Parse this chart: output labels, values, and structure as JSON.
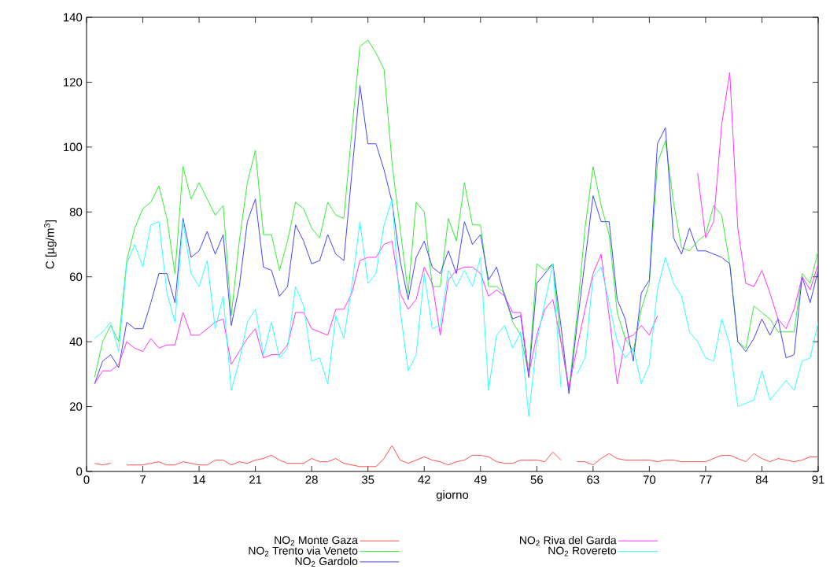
{
  "chart_data": {
    "type": "line",
    "xlabel": "giorno",
    "ylabel": "C [µg/m$^{3}$]",
    "x": [
      1,
      2,
      3,
      4,
      5,
      6,
      7,
      8,
      9,
      10,
      11,
      12,
      13,
      14,
      15,
      16,
      17,
      18,
      19,
      20,
      21,
      22,
      23,
      24,
      25,
      26,
      27,
      28,
      29,
      30,
      31,
      32,
      33,
      34,
      35,
      36,
      37,
      38,
      39,
      40,
      41,
      42,
      43,
      44,
      45,
      46,
      47,
      48,
      49,
      50,
      51,
      52,
      53,
      54,
      55,
      56,
      57,
      58,
      59,
      60,
      61,
      62,
      63,
      64,
      65,
      66,
      67,
      68,
      69,
      70,
      71,
      72,
      73,
      74,
      75,
      76,
      77,
      78,
      79,
      80,
      81,
      82,
      83,
      84,
      85,
      86,
      87,
      88,
      89,
      90,
      91
    ],
    "xlim": [
      0,
      91
    ],
    "xticks": [
      0,
      7,
      14,
      21,
      28,
      35,
      42,
      49,
      56,
      63,
      70,
      77,
      84,
      91
    ],
    "ylim": [
      0,
      140
    ],
    "yticks": [
      0,
      20,
      40,
      60,
      80,
      100,
      120,
      140
    ],
    "grid": false,
    "legend": "bottom",
    "marker": "none",
    "line_style": "solid",
    "series": [
      {
        "name": "NO$_{2}$ Monte Gaza",
        "color": "#ff5050",
        "values": [
          2.5,
          2,
          2.5,
          null,
          2,
          2,
          2,
          2.5,
          3,
          2,
          2,
          3,
          2.5,
          2,
          2,
          3.5,
          3.5,
          2,
          3,
          2.5,
          3.5,
          4,
          5,
          3.5,
          2.5,
          2.5,
          2.5,
          4,
          3,
          3,
          4,
          2.5,
          2,
          1.5,
          1.5,
          1.5,
          4,
          8,
          3.5,
          2.5,
          3.5,
          4.5,
          3.5,
          3,
          2,
          3,
          3.5,
          5,
          5,
          4.5,
          3,
          2.5,
          2.5,
          3.5,
          3.5,
          3.5,
          3,
          6,
          3.5,
          null,
          3,
          3,
          2,
          4,
          5.5,
          4,
          3.5,
          3.5,
          3.5,
          3.5,
          3,
          3.5,
          3.5,
          3,
          3,
          3,
          3,
          4,
          5,
          5,
          4,
          3,
          5.5,
          4,
          3,
          4,
          3.5,
          3,
          3.5,
          4.5,
          4.5
        ]
      },
      {
        "name": "NO$_{2}$ Trento via Veneto",
        "color": "#33ee33",
        "values": [
          29,
          40,
          45,
          40,
          65,
          75,
          81,
          83,
          88,
          78,
          61,
          94,
          84,
          89,
          84,
          79,
          82,
          48,
          71,
          89,
          99,
          73,
          73,
          62,
          71,
          83,
          81,
          75,
          72,
          83,
          79,
          78,
          105,
          131,
          133,
          129,
          124,
          95,
          75,
          55,
          83,
          80,
          57,
          57,
          78,
          71,
          89,
          76,
          76,
          57,
          57,
          55,
          46,
          42,
          30,
          64,
          62,
          64,
          40,
          25,
          48,
          75,
          94,
          82,
          73,
          49,
          41,
          37,
          50,
          58,
          95,
          102,
          83,
          69,
          68,
          71,
          73,
          82,
          79,
          64,
          40,
          38,
          51,
          49,
          47,
          43,
          43,
          43,
          61,
          58,
          68
        ]
      },
      {
        "name": "NO$_{2}$ Gardolo",
        "color": "#4444ff",
        "values": [
          27,
          34,
          36,
          32,
          46,
          44,
          44,
          52,
          61,
          61,
          52,
          78,
          66,
          68,
          74,
          67,
          73,
          45,
          57,
          77,
          84,
          63,
          62,
          54,
          57,
          76,
          71,
          64,
          65,
          73,
          67,
          65,
          92,
          119,
          101,
          101,
          93,
          83,
          65,
          53,
          66,
          71,
          63,
          61,
          68,
          61,
          77,
          70,
          73,
          59,
          63,
          54,
          47,
          48,
          29,
          58,
          61,
          64,
          45,
          24,
          45,
          65,
          85,
          77,
          77,
          53,
          47,
          34,
          55,
          59,
          101,
          106,
          72,
          67,
          75,
          68,
          68,
          67,
          66,
          64,
          40,
          37,
          41,
          47,
          42,
          47,
          35,
          36,
          60,
          52,
          62
        ]
      },
      {
        "name": "NO$_{2}$ Riva del Garda",
        "color": "#ff33ff",
        "values": [
          27,
          31,
          31,
          33,
          40,
          38,
          37,
          41,
          38,
          39,
          39,
          49,
          42,
          42,
          44,
          46,
          47,
          33,
          37,
          41,
          44,
          35,
          36,
          36,
          39,
          49,
          49,
          44,
          43,
          42,
          50,
          50,
          55,
          65,
          66,
          66,
          70,
          71,
          55,
          50,
          53,
          63,
          58,
          42,
          59,
          62,
          63,
          63,
          61,
          54,
          56,
          54,
          49,
          49,
          30,
          42,
          50,
          53,
          40,
          26,
          38,
          50,
          61,
          67,
          48,
          27,
          41,
          42,
          45,
          42,
          48,
          null,
          null,
          null,
          null,
          92,
          72,
          77,
          107,
          123,
          75,
          58,
          57,
          62,
          55,
          47,
          44,
          50,
          60,
          56,
          64
        ]
      },
      {
        "name": "NO$_{2}$ Rovereto",
        "color": "#33ffff",
        "values": [
          41,
          43,
          46,
          37,
          64,
          70,
          63,
          76,
          77,
          55,
          46,
          77,
          61,
          57,
          65,
          44,
          54,
          25,
          34,
          46,
          50,
          36,
          46,
          35,
          38,
          57,
          51,
          34,
          35,
          27,
          48,
          41,
          57,
          77,
          58,
          61,
          76,
          84,
          50,
          31,
          36,
          61,
          44,
          45,
          62,
          57,
          62,
          57,
          66,
          25,
          42,
          45,
          38,
          43,
          17,
          40,
          52,
          64,
          26,
          null,
          30,
          35,
          60,
          63,
          52,
          40,
          35,
          38,
          27,
          33,
          56,
          66,
          58,
          54,
          43,
          40,
          35,
          34,
          47,
          39,
          20,
          21,
          22,
          31,
          22,
          25,
          28,
          25,
          34,
          35,
          46
        ]
      }
    ]
  }
}
